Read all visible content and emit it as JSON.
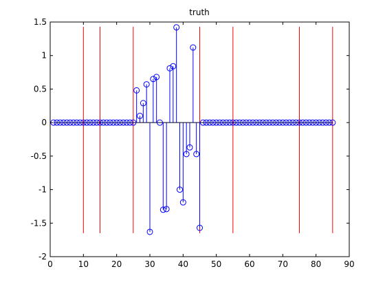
{
  "chart_data": {
    "type": "stem",
    "title": "truth",
    "xlabel": "",
    "ylabel": "",
    "xlim": [
      0,
      90
    ],
    "ylim": [
      -2,
      1.5
    ],
    "x_ticks": [
      0,
      10,
      20,
      30,
      40,
      50,
      60,
      70,
      80,
      90
    ],
    "y_ticks": [
      -2,
      -1.5,
      -1,
      -0.5,
      0,
      0.5,
      1,
      1.5
    ],
    "y_tick_labels": [
      "-2",
      "-1.5",
      "-1",
      "-0.5",
      "0",
      "0.5",
      "1",
      "1.5"
    ],
    "grid": false,
    "colors": {
      "stem": "#0000ff",
      "marker": "#0000ff",
      "marker_face": "none",
      "vline": "#ff0000",
      "baseline": "#000000"
    },
    "series": {
      "x": [
        1,
        2,
        3,
        4,
        5,
        6,
        7,
        8,
        9,
        10,
        11,
        12,
        13,
        14,
        15,
        16,
        17,
        18,
        19,
        20,
        21,
        22,
        23,
        24,
        25,
        26,
        27,
        28,
        29,
        30,
        31,
        32,
        33,
        34,
        35,
        36,
        37,
        38,
        39,
        40,
        41,
        42,
        43,
        44,
        45,
        46,
        47,
        48,
        49,
        50,
        51,
        52,
        53,
        54,
        55,
        56,
        57,
        58,
        59,
        60,
        61,
        62,
        63,
        64,
        65,
        66,
        67,
        68,
        69,
        70,
        71,
        72,
        73,
        74,
        75,
        76,
        77,
        78,
        79,
        80,
        81,
        82,
        83,
        84,
        85
      ],
      "y": [
        0,
        0,
        0,
        0,
        0,
        0,
        0,
        0,
        0,
        0,
        0,
        0,
        0,
        0,
        0,
        0,
        0,
        0,
        0,
        0,
        0,
        0,
        0,
        0,
        0,
        0.48,
        0.1,
        0.29,
        0.57,
        -1.63,
        0.65,
        0.68,
        0,
        -1.3,
        -1.29,
        0.81,
        0.84,
        1.42,
        -1,
        -1.19,
        -0.47,
        -0.37,
        1.12,
        -0.47,
        -1.57,
        0,
        0,
        0,
        0,
        0,
        0,
        0,
        0,
        0,
        0,
        0,
        0,
        0,
        0,
        0,
        0,
        0,
        0,
        0,
        0,
        0,
        0,
        0,
        0,
        0,
        0,
        0,
        0,
        0,
        0,
        0,
        0,
        0,
        0,
        0,
        0,
        0,
        0,
        0,
        0
      ]
    },
    "vlines": {
      "x": [
        10,
        15,
        25,
        45,
        55,
        75,
        85
      ],
      "y_range": [
        -1.65,
        1.43
      ]
    }
  }
}
